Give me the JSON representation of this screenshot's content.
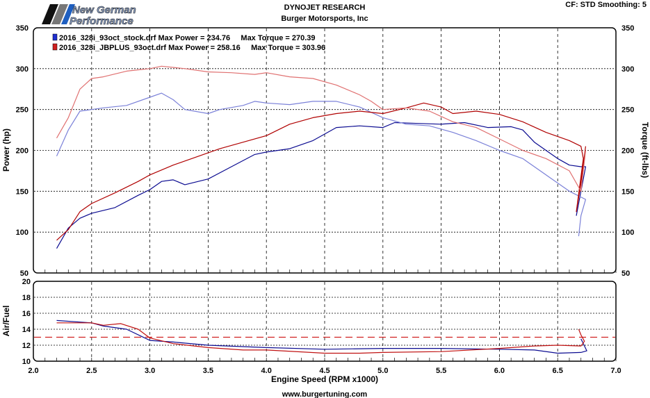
{
  "header": {
    "logo_text": [
      "New German",
      "Performance"
    ],
    "title": "DYNOJET RESEARCH",
    "subtitle": "Burger Motorsports, Inc",
    "settings": "CF: STD  Smoothing: 5",
    "footer": "www.burgertuning.com"
  },
  "chart_data": [
    {
      "type": "line",
      "xlabel": "Engine Speed (RPM x1000)",
      "ylabel": "Power (hp)",
      "y2label": "Torque (ft-lbs)",
      "xlim": [
        2.0,
        7.0
      ],
      "ylim": [
        50,
        350
      ],
      "y2lim": [
        50,
        350
      ],
      "xticks": [
        "2.0",
        "2.5",
        "3.0",
        "3.5",
        "4.0",
        "4.5",
        "5.0",
        "5.5",
        "6.0",
        "6.5",
        "7.0"
      ],
      "yticks": [
        "50",
        "100",
        "150",
        "200",
        "250",
        "300",
        "350"
      ],
      "grid": true,
      "legend_position": "top-left",
      "legend": [
        {
          "text": "2016_328i_93oct_stock.drf Max Power = 234.76     Max Torque = 270.39",
          "color": "#1f2fd0"
        },
        {
          "text": "2016_328i_JBPLUS_93oct.drf Max Power = 258.16     Max Torque = 303.96",
          "color": "#d02020"
        }
      ],
      "series": [
        {
          "run": "stock",
          "measure": "power",
          "color": "#0a0a90",
          "x": [
            2.2,
            2.3,
            2.4,
            2.5,
            2.7,
            2.9,
            3.0,
            3.1,
            3.2,
            3.3,
            3.5,
            3.7,
            3.9,
            4.0,
            4.2,
            4.4,
            4.6,
            4.8,
            5.0,
            5.1,
            5.3,
            5.5,
            5.7,
            5.9,
            6.1,
            6.2,
            6.3,
            6.4,
            6.5,
            6.6,
            6.7,
            6.74,
            6.7,
            6.66
          ],
          "y": [
            80,
            105,
            117,
            123,
            130,
            145,
            152,
            162,
            164,
            158,
            165,
            180,
            195,
            198,
            202,
            212,
            228,
            230,
            228,
            234,
            233,
            232,
            234,
            228,
            229,
            225,
            210,
            200,
            190,
            182,
            180,
            180,
            150,
            120
          ]
        },
        {
          "run": "stock",
          "measure": "torque",
          "color": "#7a80d8",
          "x": [
            2.2,
            2.3,
            2.4,
            2.5,
            2.6,
            2.8,
            3.0,
            3.1,
            3.2,
            3.3,
            3.5,
            3.6,
            3.8,
            3.9,
            4.0,
            4.2,
            4.4,
            4.6,
            4.8,
            5.0,
            5.2,
            5.4,
            5.6,
            5.8,
            6.0,
            6.2,
            6.4,
            6.6,
            6.74,
            6.7,
            6.68
          ],
          "y": [
            193,
            225,
            248,
            250,
            252,
            255,
            265,
            270,
            262,
            250,
            245,
            250,
            255,
            260,
            258,
            256,
            260,
            260,
            253,
            240,
            232,
            230,
            222,
            212,
            200,
            190,
            170,
            150,
            140,
            120,
            95
          ]
        },
        {
          "run": "JBPLUS",
          "measure": "power",
          "color": "#b00000",
          "x": [
            2.2,
            2.3,
            2.4,
            2.5,
            2.7,
            2.9,
            3.0,
            3.2,
            3.4,
            3.6,
            3.8,
            4.0,
            4.2,
            4.4,
            4.6,
            4.8,
            5.0,
            5.2,
            5.35,
            5.5,
            5.6,
            5.8,
            6.0,
            6.2,
            6.4,
            6.6,
            6.7,
            6.72,
            6.66,
            6.7,
            6.74
          ],
          "y": [
            90,
            103,
            125,
            135,
            148,
            162,
            170,
            182,
            192,
            202,
            210,
            218,
            232,
            240,
            245,
            248,
            245,
            252,
            258,
            253,
            245,
            248,
            244,
            235,
            222,
            212,
            205,
            190,
            125,
            160,
            205
          ]
        },
        {
          "run": "JBPLUS",
          "measure": "torque",
          "color": "#e07070",
          "x": [
            2.2,
            2.3,
            2.4,
            2.5,
            2.6,
            2.8,
            3.0,
            3.1,
            3.3,
            3.5,
            3.7,
            3.9,
            4.0,
            4.2,
            4.4,
            4.6,
            4.8,
            4.9,
            5.0,
            5.2,
            5.4,
            5.6,
            5.8,
            6.0,
            6.2,
            6.4,
            6.6,
            6.7,
            6.74
          ],
          "y": [
            215,
            240,
            275,
            288,
            290,
            297,
            300,
            303,
            300,
            296,
            295,
            293,
            295,
            290,
            288,
            280,
            268,
            260,
            250,
            252,
            248,
            235,
            228,
            214,
            200,
            190,
            175,
            150,
            200
          ]
        }
      ]
    },
    {
      "type": "line",
      "xlabel": "Engine Speed (RPM x1000)",
      "ylabel": "Air/Fuel",
      "xlim": [
        2.0,
        7.0
      ],
      "ylim": [
        10,
        20
      ],
      "yticks": [
        "10",
        "12",
        "14",
        "16",
        "18",
        "20"
      ],
      "grid": true,
      "reference_line": {
        "y": 13,
        "color": "#d02020",
        "style": "dashed"
      },
      "series": [
        {
          "run": "stock",
          "color": "#0a0a90",
          "x": [
            2.2,
            2.5,
            2.6,
            2.8,
            3.0,
            3.2,
            3.5,
            4.0,
            4.5,
            5.0,
            5.5,
            6.0,
            6.3,
            6.5,
            6.7,
            6.75,
            6.72,
            6.7
          ],
          "y": [
            15.1,
            14.8,
            14.4,
            14.0,
            12.6,
            12.4,
            12.0,
            11.7,
            11.5,
            11.6,
            11.6,
            11.5,
            11.4,
            11.0,
            11.1,
            11.3,
            12.2,
            12.8
          ]
        },
        {
          "run": "JBPLUS",
          "color": "#c01010",
          "x": [
            2.2,
            2.5,
            2.6,
            2.75,
            2.9,
            3.0,
            3.2,
            3.5,
            3.8,
            4.0,
            4.5,
            4.8,
            5.0,
            5.5,
            6.0,
            6.3,
            6.5,
            6.7,
            6.73,
            6.7,
            6.68
          ],
          "y": [
            14.8,
            14.8,
            14.5,
            14.7,
            14.0,
            12.9,
            12.2,
            11.7,
            11.4,
            11.4,
            11.0,
            11.0,
            11.1,
            11.2,
            11.6,
            11.9,
            12.0,
            11.9,
            12.5,
            13.3,
            14.0
          ]
        }
      ]
    }
  ]
}
